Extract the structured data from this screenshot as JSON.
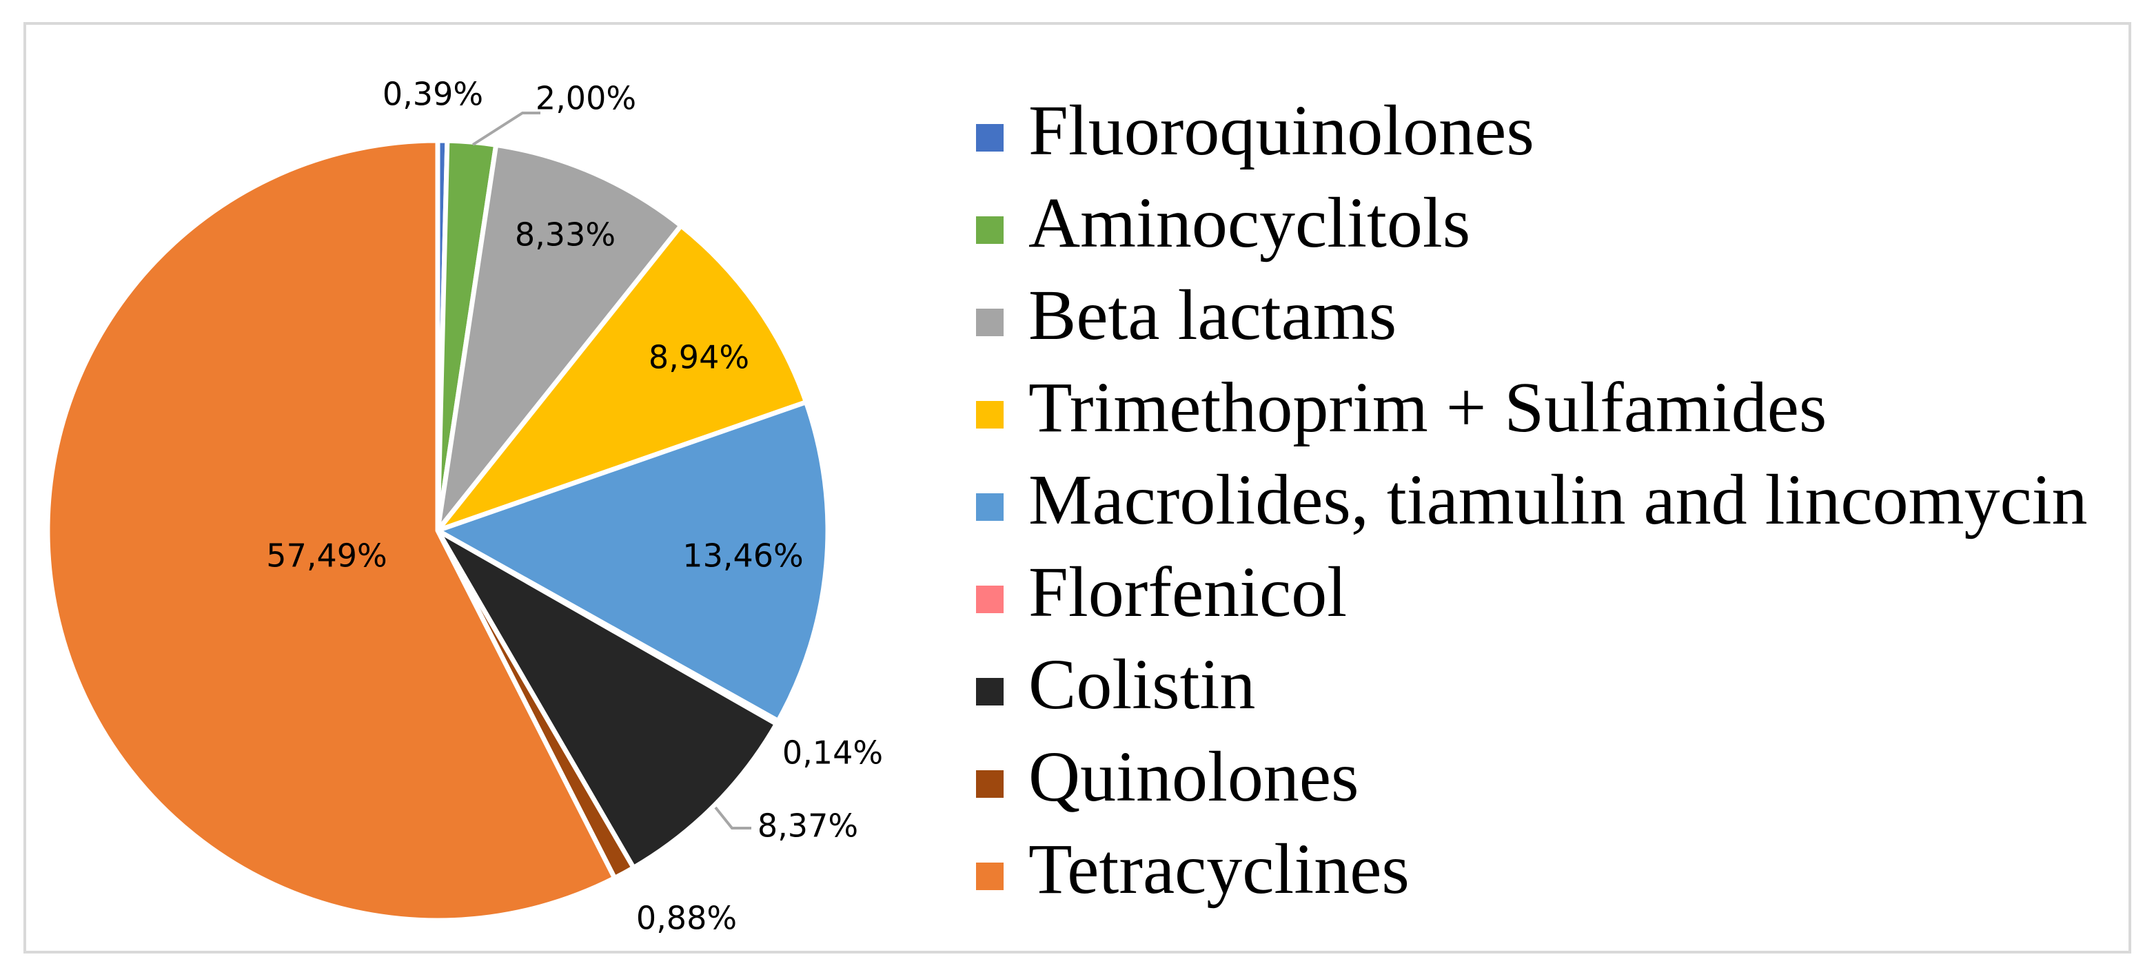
{
  "chart_data": {
    "type": "pie",
    "title": "",
    "legend_position": "right",
    "start_angle_deg": 0,
    "direction": "clockwise",
    "series": [
      {
        "name": "Fluoroquinolones",
        "value": 0.39,
        "label": "0,39%",
        "color": "#4472C4"
      },
      {
        "name": "Aminocyclitols",
        "value": 2.0,
        "label": "2,00%",
        "color": "#70AD47"
      },
      {
        "name": "Beta lactams",
        "value": 8.33,
        "label": "8,33%",
        "color": "#A5A5A5"
      },
      {
        "name": "Trimethoprim + Sulfamides",
        "value": 8.94,
        "label": "8,94%",
        "color": "#FFC000"
      },
      {
        "name": "Macrolides, tiamulin and lincomycin",
        "value": 13.46,
        "label": "13,46%",
        "color": "#5B9BD5"
      },
      {
        "name": "Florfenicol",
        "value": 0.14,
        "label": "0,14%",
        "color": "#FF7C80"
      },
      {
        "name": "Colistin",
        "value": 8.37,
        "label": "8,37%",
        "color": "#262626"
      },
      {
        "name": "Quinolones",
        "value": 0.88,
        "label": "0,88%",
        "color": "#9E480E"
      },
      {
        "name": "Tetracyclines",
        "value": 57.49,
        "label": "57,49%",
        "color": "#ED7D31"
      }
    ]
  }
}
